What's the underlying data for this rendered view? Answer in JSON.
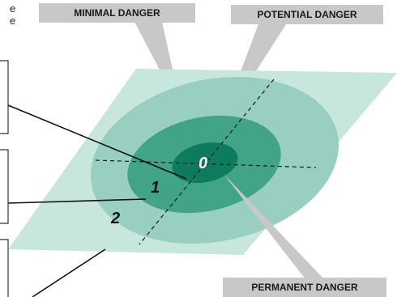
{
  "text_fragments": {
    "line1": "e",
    "line2": "e"
  },
  "labels": {
    "minimal": "MINIMAL DANGER",
    "potential": "POTENTIAL DANGER",
    "permanent": "PERMANENT DANGER"
  },
  "zones": {
    "zone0": "0",
    "zone1": "1",
    "zone2": "2"
  },
  "colors": {
    "ground": "#c7e6dc",
    "zone2": "#99cfc0",
    "zone1": "#42a487",
    "zone0": "#0e7b5e",
    "callout": "#c8c8c8"
  }
}
